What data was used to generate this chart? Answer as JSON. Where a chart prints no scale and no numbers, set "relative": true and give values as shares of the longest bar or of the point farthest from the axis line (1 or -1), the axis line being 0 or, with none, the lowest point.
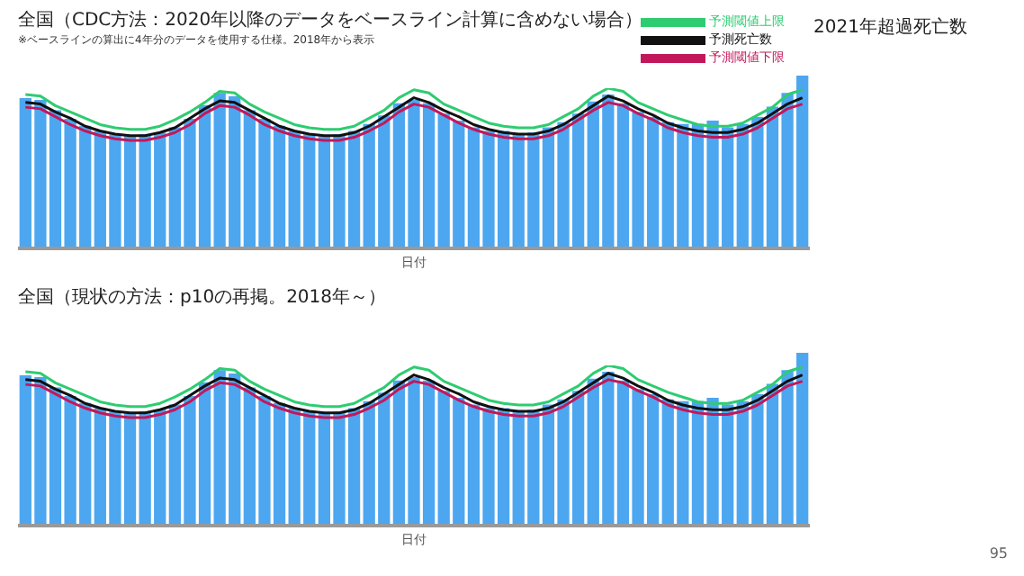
{
  "chart_data": [
    {
      "type": "bar",
      "title": "全国（CDC方法：2020年以降のデータをベースライン計算に含めない場合）",
      "subtitle": "※ベースラインの算出に4年分のデータを使用する仕様。2018年から表示",
      "xlabel": "日付",
      "relative": true,
      "categories": [
        null,
        null,
        null,
        null,
        null,
        null,
        null,
        null,
        null,
        null,
        null,
        null,
        null,
        null,
        null,
        null,
        null,
        null,
        null,
        null,
        null,
        null,
        null,
        null,
        null,
        null,
        null,
        null,
        null,
        null,
        null,
        null,
        null,
        null,
        null,
        null,
        null,
        null,
        null,
        null,
        null,
        null,
        null,
        null,
        null,
        null,
        null,
        null,
        null,
        null,
        null,
        null,
        null
      ],
      "series": [
        {
          "color": "#4da6f0",
          "values": [
            0.87,
            0.86,
            0.8,
            0.75,
            0.71,
            0.68,
            0.66,
            0.65,
            0.66,
            0.67,
            0.7,
            0.75,
            0.83,
            0.9,
            0.88,
            0.8,
            0.75,
            0.71,
            0.68,
            0.66,
            0.65,
            0.66,
            0.68,
            0.72,
            0.77,
            0.84,
            0.86,
            0.84,
            0.78,
            0.74,
            0.7,
            0.68,
            0.68,
            0.66,
            0.67,
            0.7,
            0.73,
            0.78,
            0.85,
            0.89,
            0.84,
            0.79,
            0.76,
            0.73,
            0.72,
            0.72,
            0.74,
            0.7,
            0.72,
            0.76,
            0.82,
            0.9,
            1.0
          ]
        }
      ]
    },
    {
      "type": "line",
      "relative": true,
      "legend": "top right",
      "marker": "none",
      "categories": [
        null,
        null,
        null,
        null,
        null,
        null,
        null,
        null,
        null,
        null,
        null,
        null,
        null,
        null,
        null,
        null,
        null,
        null,
        null,
        null,
        null,
        null,
        null,
        null,
        null,
        null,
        null,
        null,
        null,
        null,
        null,
        null,
        null,
        null,
        null,
        null,
        null,
        null,
        null,
        null,
        null,
        null,
        null,
        null,
        null,
        null,
        null,
        null,
        null,
        null,
        null,
        null,
        null
      ],
      "series": [
        {
          "name": "予測閾値上限",
          "color": "#2ecc71",
          "values": [
            0.96,
            0.95,
            0.89,
            0.85,
            0.81,
            0.77,
            0.75,
            0.74,
            0.74,
            0.76,
            0.8,
            0.85,
            0.91,
            0.98,
            0.97,
            0.9,
            0.85,
            0.81,
            0.77,
            0.75,
            0.74,
            0.74,
            0.76,
            0.81,
            0.86,
            0.94,
            0.99,
            0.97,
            0.9,
            0.86,
            0.82,
            0.78,
            0.76,
            0.75,
            0.75,
            0.77,
            0.82,
            0.87,
            0.95,
            1.0,
            0.98,
            0.91,
            0.87,
            0.83,
            0.8,
            0.77,
            0.76,
            0.76,
            0.78,
            0.83,
            0.88,
            0.96,
            0.99
          ]
        },
        {
          "name": "予測死亡数",
          "color": "#111111",
          "values": [
            0.91,
            0.9,
            0.85,
            0.81,
            0.76,
            0.73,
            0.71,
            0.7,
            0.7,
            0.72,
            0.75,
            0.81,
            0.87,
            0.92,
            0.91,
            0.86,
            0.81,
            0.76,
            0.73,
            0.71,
            0.7,
            0.7,
            0.72,
            0.76,
            0.82,
            0.88,
            0.94,
            0.91,
            0.86,
            0.82,
            0.77,
            0.74,
            0.72,
            0.71,
            0.71,
            0.73,
            0.77,
            0.83,
            0.89,
            0.95,
            0.92,
            0.87,
            0.83,
            0.78,
            0.75,
            0.73,
            0.72,
            0.72,
            0.74,
            0.78,
            0.84,
            0.9,
            0.94
          ]
        },
        {
          "name": "予測閾値下限",
          "color": "#c2185b",
          "values": [
            0.88,
            0.87,
            0.82,
            0.77,
            0.73,
            0.7,
            0.68,
            0.67,
            0.67,
            0.69,
            0.72,
            0.77,
            0.84,
            0.89,
            0.88,
            0.83,
            0.77,
            0.73,
            0.7,
            0.68,
            0.67,
            0.67,
            0.69,
            0.73,
            0.78,
            0.85,
            0.9,
            0.88,
            0.83,
            0.78,
            0.74,
            0.71,
            0.69,
            0.68,
            0.68,
            0.7,
            0.74,
            0.8,
            0.86,
            0.91,
            0.89,
            0.84,
            0.8,
            0.75,
            0.72,
            0.7,
            0.69,
            0.69,
            0.71,
            0.75,
            0.81,
            0.87,
            0.9
          ]
        }
      ]
    },
    {
      "type": "bar",
      "title": "全国（現状の方法：p10の再掲。2018年～）",
      "xlabel": "日付",
      "relative": true,
      "categories": [
        null,
        null,
        null,
        null,
        null,
        null,
        null,
        null,
        null,
        null,
        null,
        null,
        null,
        null,
        null,
        null,
        null,
        null,
        null,
        null,
        null,
        null,
        null,
        null,
        null,
        null,
        null,
        null,
        null,
        null,
        null,
        null,
        null,
        null,
        null,
        null,
        null,
        null,
        null,
        null,
        null,
        null,
        null,
        null,
        null,
        null,
        null,
        null,
        null,
        null,
        null,
        null,
        null
      ],
      "series": [
        {
          "color": "#4da6f0",
          "values": [
            0.87,
            0.86,
            0.8,
            0.75,
            0.71,
            0.68,
            0.66,
            0.65,
            0.66,
            0.67,
            0.7,
            0.75,
            0.83,
            0.9,
            0.88,
            0.8,
            0.75,
            0.71,
            0.68,
            0.66,
            0.65,
            0.66,
            0.68,
            0.72,
            0.77,
            0.84,
            0.86,
            0.84,
            0.78,
            0.74,
            0.7,
            0.68,
            0.68,
            0.66,
            0.67,
            0.7,
            0.73,
            0.78,
            0.85,
            0.89,
            0.84,
            0.79,
            0.76,
            0.73,
            0.72,
            0.72,
            0.74,
            0.7,
            0.72,
            0.76,
            0.82,
            0.9,
            1.0
          ]
        }
      ]
    },
    {
      "type": "line",
      "relative": true,
      "marker": "none",
      "categories": [
        null,
        null,
        null,
        null,
        null,
        null,
        null,
        null,
        null,
        null,
        null,
        null,
        null,
        null,
        null,
        null,
        null,
        null,
        null,
        null,
        null,
        null,
        null,
        null,
        null,
        null,
        null,
        null,
        null,
        null,
        null,
        null,
        null,
        null,
        null,
        null,
        null,
        null,
        null,
        null,
        null,
        null,
        null,
        null,
        null,
        null,
        null,
        null,
        null,
        null,
        null,
        null,
        null
      ],
      "series": [
        {
          "color": "#2ecc71",
          "values": [
            0.96,
            0.95,
            0.89,
            0.85,
            0.81,
            0.77,
            0.75,
            0.74,
            0.74,
            0.76,
            0.8,
            0.85,
            0.91,
            0.98,
            0.97,
            0.9,
            0.85,
            0.81,
            0.77,
            0.75,
            0.74,
            0.74,
            0.76,
            0.81,
            0.86,
            0.94,
            0.99,
            0.97,
            0.9,
            0.86,
            0.82,
            0.78,
            0.76,
            0.75,
            0.75,
            0.77,
            0.82,
            0.87,
            0.95,
            1.0,
            0.98,
            0.91,
            0.87,
            0.83,
            0.8,
            0.77,
            0.76,
            0.76,
            0.78,
            0.83,
            0.88,
            0.96,
            0.99
          ]
        },
        {
          "color": "#111111",
          "values": [
            0.91,
            0.9,
            0.85,
            0.81,
            0.76,
            0.73,
            0.71,
            0.7,
            0.7,
            0.72,
            0.75,
            0.81,
            0.87,
            0.92,
            0.91,
            0.86,
            0.81,
            0.76,
            0.73,
            0.71,
            0.7,
            0.7,
            0.72,
            0.76,
            0.82,
            0.88,
            0.94,
            0.91,
            0.86,
            0.82,
            0.77,
            0.74,
            0.72,
            0.71,
            0.71,
            0.73,
            0.77,
            0.83,
            0.89,
            0.95,
            0.92,
            0.87,
            0.83,
            0.78,
            0.75,
            0.73,
            0.72,
            0.72,
            0.74,
            0.78,
            0.84,
            0.9,
            0.94
          ]
        },
        {
          "color": "#c2185b",
          "values": [
            0.88,
            0.87,
            0.82,
            0.77,
            0.73,
            0.7,
            0.68,
            0.67,
            0.67,
            0.69,
            0.72,
            0.77,
            0.84,
            0.89,
            0.88,
            0.83,
            0.77,
            0.73,
            0.7,
            0.68,
            0.67,
            0.67,
            0.69,
            0.73,
            0.78,
            0.85,
            0.9,
            0.88,
            0.83,
            0.78,
            0.74,
            0.71,
            0.69,
            0.68,
            0.68,
            0.7,
            0.74,
            0.8,
            0.86,
            0.91,
            0.89,
            0.84,
            0.8,
            0.75,
            0.72,
            0.7,
            0.69,
            0.69,
            0.71,
            0.75,
            0.81,
            0.87,
            0.9
          ]
        }
      ]
    },
    {
      "type": "other",
      "title": "2021年超過死亡数",
      "annotations": [
        "95"
      ]
    }
  ]
}
